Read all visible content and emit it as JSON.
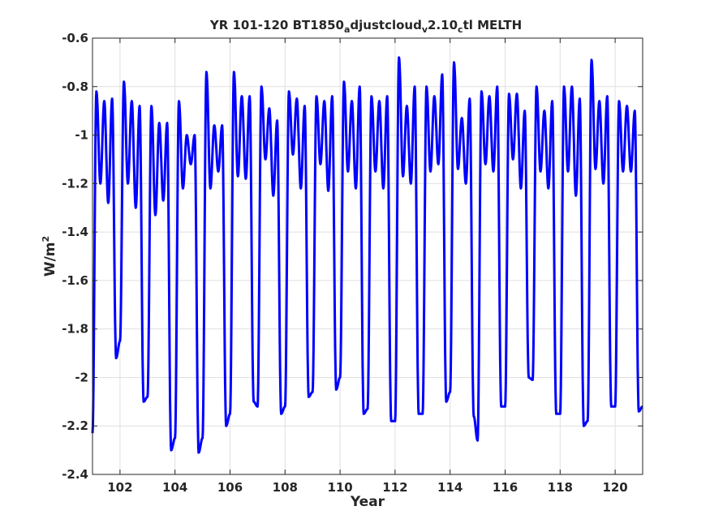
{
  "chart_data": {
    "type": "line",
    "title_parts": [
      "YR 101-120 BT1850",
      "a",
      "djustcloud",
      "v",
      "2.10",
      "c",
      "tl MELTH"
    ],
    "xlabel": "Year",
    "ylabel_base": "W/m",
    "ylabel_sup": "2",
    "xlim": [
      101,
      121
    ],
    "ylim": [
      -2.4,
      -0.6
    ],
    "xticks": [
      102,
      104,
      106,
      108,
      110,
      112,
      114,
      116,
      118,
      120
    ],
    "yticks": [
      -2.4,
      -2.2,
      -2.0,
      -1.8,
      -1.6,
      -1.4,
      -1.2,
      -1.0,
      -0.8,
      -0.6
    ],
    "xtick_labels": [
      "102",
      "104",
      "106",
      "108",
      "110",
      "112",
      "114",
      "116",
      "118",
      "120"
    ],
    "ytick_labels": [
      "-2.4",
      "-2.2",
      "-2",
      "-1.8",
      "-1.6",
      "-1.4",
      "-1.2",
      "-1",
      "-0.8",
      "-0.6"
    ],
    "grid": true,
    "line_color": "#0000ff",
    "series": [
      {
        "monthly_values_by_year": [
          [
            -2.23,
            -0.82,
            -1.2,
            -0.86,
            -1.28,
            -0.85,
            -1.92
          ],
          [
            -1.85,
            -0.78,
            -1.2,
            -0.86,
            -1.3,
            -0.88,
            -2.1
          ],
          [
            -2.08,
            -0.88,
            -1.33,
            -0.95,
            -1.27,
            -0.95,
            -2.3
          ],
          [
            -2.25,
            -0.86,
            -1.22,
            -1.0,
            -1.12,
            -1.0,
            -2.31
          ],
          [
            -2.25,
            -0.74,
            -1.22,
            -0.96,
            -1.15,
            -0.96,
            -2.2
          ],
          [
            -2.15,
            -0.74,
            -1.17,
            -0.84,
            -1.18,
            -0.84,
            -2.1
          ],
          [
            -2.12,
            -0.8,
            -1.1,
            -0.89,
            -1.25,
            -0.94,
            -2.15
          ],
          [
            -2.12,
            -0.82,
            -1.08,
            -0.85,
            -1.22,
            -0.88,
            -2.08
          ],
          [
            -2.06,
            -0.84,
            -1.12,
            -0.86,
            -1.23,
            -0.84,
            -2.05
          ],
          [
            -2.0,
            -0.78,
            -1.15,
            -0.86,
            -1.22,
            -0.8,
            -2.15
          ],
          [
            -2.13,
            -0.84,
            -1.15,
            -0.86,
            -1.22,
            -0.84,
            -2.18
          ],
          [
            -2.18,
            -0.68,
            -1.17,
            -0.88,
            -1.2,
            -0.8,
            -2.15
          ],
          [
            -2.15,
            -0.8,
            -1.15,
            -0.84,
            -1.12,
            -0.75,
            -2.1
          ],
          [
            -2.06,
            -0.7,
            -1.14,
            -0.93,
            -1.2,
            -0.85,
            -2.16
          ],
          [
            -2.26,
            -0.82,
            -1.12,
            -0.84,
            -1.15,
            -0.8,
            -2.12
          ],
          [
            -2.12,
            -0.83,
            -1.1,
            -0.83,
            -1.22,
            -0.9,
            -2.0
          ],
          [
            -2.01,
            -0.8,
            -1.15,
            -0.9,
            -1.22,
            -0.86,
            -2.15
          ],
          [
            -2.15,
            -0.8,
            -1.15,
            -0.8,
            -1.25,
            -0.85,
            -2.2
          ],
          [
            -2.18,
            -0.69,
            -1.14,
            -0.86,
            -1.2,
            -0.84,
            -2.12
          ],
          [
            -2.12,
            -0.86,
            -1.15,
            -0.88,
            -1.15,
            -0.9,
            -2.14
          ]
        ]
      }
    ]
  }
}
